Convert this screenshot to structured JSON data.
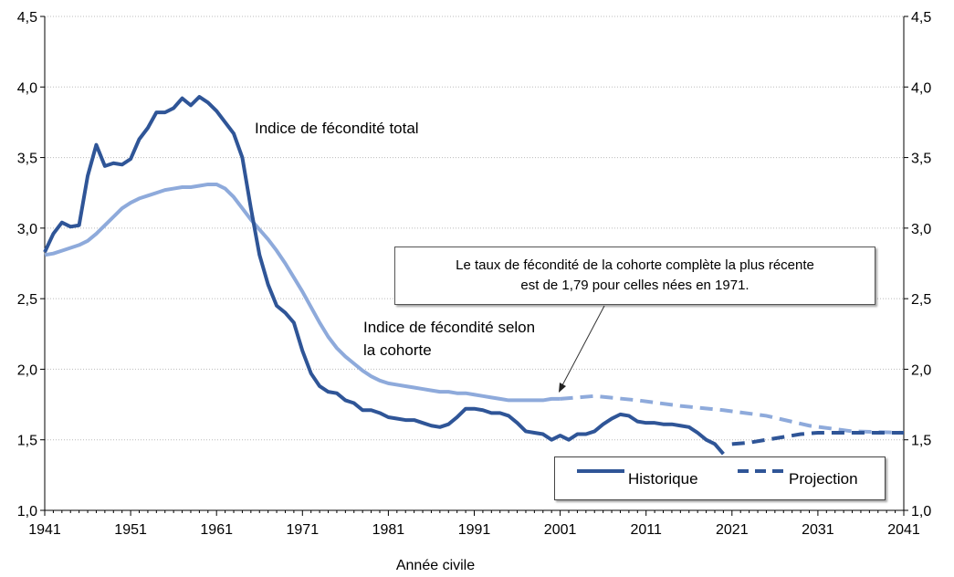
{
  "chart_data": {
    "type": "line",
    "xlabel": "Année civile",
    "xlim": [
      1941,
      2041
    ],
    "ylim": [
      1.0,
      4.5
    ],
    "x_ticks": [
      "1941",
      "1951",
      "1961",
      "1971",
      "1981",
      "1991",
      "2001",
      "2011",
      "2021",
      "2031",
      "2041"
    ],
    "y_ticks": [
      "1,0",
      "1,5",
      "2,0",
      "2,5",
      "3,0",
      "3,5",
      "4,0",
      "4,5"
    ],
    "grid": "horizontal dotted",
    "series": [
      {
        "name": "Indice de fécondité total",
        "color": "#2f5597",
        "historique": {
          "x": [
            1941,
            1942,
            1943,
            1944,
            1945,
            1946,
            1947,
            1948,
            1949,
            1950,
            1951,
            1952,
            1953,
            1954,
            1955,
            1956,
            1957,
            1958,
            1959,
            1960,
            1961,
            1962,
            1963,
            1964,
            1965,
            1966,
            1967,
            1968,
            1969,
            1970,
            1971,
            1972,
            1973,
            1974,
            1975,
            1976,
            1977,
            1978,
            1979,
            1980,
            1981,
            1982,
            1983,
            1984,
            1985,
            1986,
            1987,
            1988,
            1989,
            1990,
            1991,
            1992,
            1993,
            1994,
            1995,
            1996,
            1997,
            1998,
            1999,
            2000,
            2001,
            2002,
            2003,
            2004,
            2005,
            2006,
            2007,
            2008,
            2009,
            2010,
            2011,
            2012,
            2013,
            2014,
            2015,
            2016,
            2017,
            2018,
            2019,
            2020
          ],
          "y": [
            2.83,
            2.96,
            3.04,
            3.01,
            3.02,
            3.37,
            3.59,
            3.44,
            3.46,
            3.45,
            3.49,
            3.63,
            3.71,
            3.82,
            3.82,
            3.85,
            3.92,
            3.87,
            3.93,
            3.89,
            3.83,
            3.75,
            3.67,
            3.5,
            3.14,
            2.81,
            2.6,
            2.45,
            2.4,
            2.33,
            2.13,
            1.97,
            1.88,
            1.84,
            1.83,
            1.78,
            1.76,
            1.71,
            1.71,
            1.69,
            1.66,
            1.65,
            1.64,
            1.64,
            1.62,
            1.6,
            1.59,
            1.61,
            1.66,
            1.72,
            1.72,
            1.71,
            1.69,
            1.69,
            1.67,
            1.62,
            1.56,
            1.55,
            1.54,
            1.5,
            1.53,
            1.5,
            1.54,
            1.54,
            1.56,
            1.61,
            1.65,
            1.68,
            1.67,
            1.63,
            1.62,
            1.62,
            1.61,
            1.61,
            1.6,
            1.59,
            1.55,
            1.5,
            1.47,
            1.4
          ]
        },
        "projection": {
          "x": [
            2021,
            2023,
            2025,
            2027,
            2029,
            2031,
            2033,
            2035,
            2037,
            2039,
            2041
          ],
          "y": [
            1.47,
            1.48,
            1.5,
            1.52,
            1.54,
            1.55,
            1.55,
            1.55,
            1.55,
            1.55,
            1.55
          ]
        }
      },
      {
        "name": "Indice de fécondité selon la cohorte",
        "color": "#8eaadb",
        "historique": {
          "x": [
            1941,
            1942,
            1943,
            1944,
            1945,
            1946,
            1947,
            1948,
            1949,
            1950,
            1951,
            1952,
            1953,
            1954,
            1955,
            1956,
            1957,
            1958,
            1959,
            1960,
            1961,
            1962,
            1963,
            1964,
            1965,
            1966,
            1967,
            1968,
            1969,
            1970,
            1971,
            1972,
            1973,
            1974,
            1975,
            1976,
            1977,
            1978,
            1979,
            1980,
            1981,
            1982,
            1983,
            1984,
            1985,
            1986,
            1987,
            1988,
            1989,
            1990,
            1991,
            1992,
            1993,
            1994,
            1995,
            1996,
            1997,
            1998,
            1999,
            2000,
            2001
          ],
          "y": [
            2.81,
            2.82,
            2.84,
            2.86,
            2.88,
            2.91,
            2.96,
            3.02,
            3.08,
            3.14,
            3.18,
            3.21,
            3.23,
            3.25,
            3.27,
            3.28,
            3.29,
            3.29,
            3.3,
            3.31,
            3.31,
            3.28,
            3.22,
            3.14,
            3.06,
            2.99,
            2.92,
            2.84,
            2.75,
            2.65,
            2.55,
            2.44,
            2.33,
            2.23,
            2.15,
            2.09,
            2.04,
            1.99,
            1.95,
            1.92,
            1.9,
            1.89,
            1.88,
            1.87,
            1.86,
            1.85,
            1.84,
            1.84,
            1.83,
            1.83,
            1.82,
            1.81,
            1.8,
            1.79,
            1.78,
            1.78,
            1.78,
            1.78,
            1.78,
            1.79,
            1.79
          ]
        },
        "projection": {
          "x": [
            2001,
            2005,
            2010,
            2015,
            2020,
            2025,
            2030,
            2035,
            2041
          ],
          "y": [
            1.79,
            1.81,
            1.78,
            1.74,
            1.71,
            1.67,
            1.6,
            1.56,
            1.55
          ]
        }
      }
    ],
    "annotations": {
      "tfr_label": "Indice de fécondité total",
      "cohort_label_line1": "Indice de fécondité selon",
      "cohort_label_line2": "la cohorte",
      "callout_line1": "Le taux de fécondité de la cohorte complète la plus récente",
      "callout_line2": "est de 1,79 pour celles nées en 1971."
    },
    "legend": {
      "position": "bottom-right",
      "items": [
        {
          "label": "Historique",
          "style": "solid"
        },
        {
          "label": "Projection",
          "style": "dashed"
        }
      ]
    }
  }
}
